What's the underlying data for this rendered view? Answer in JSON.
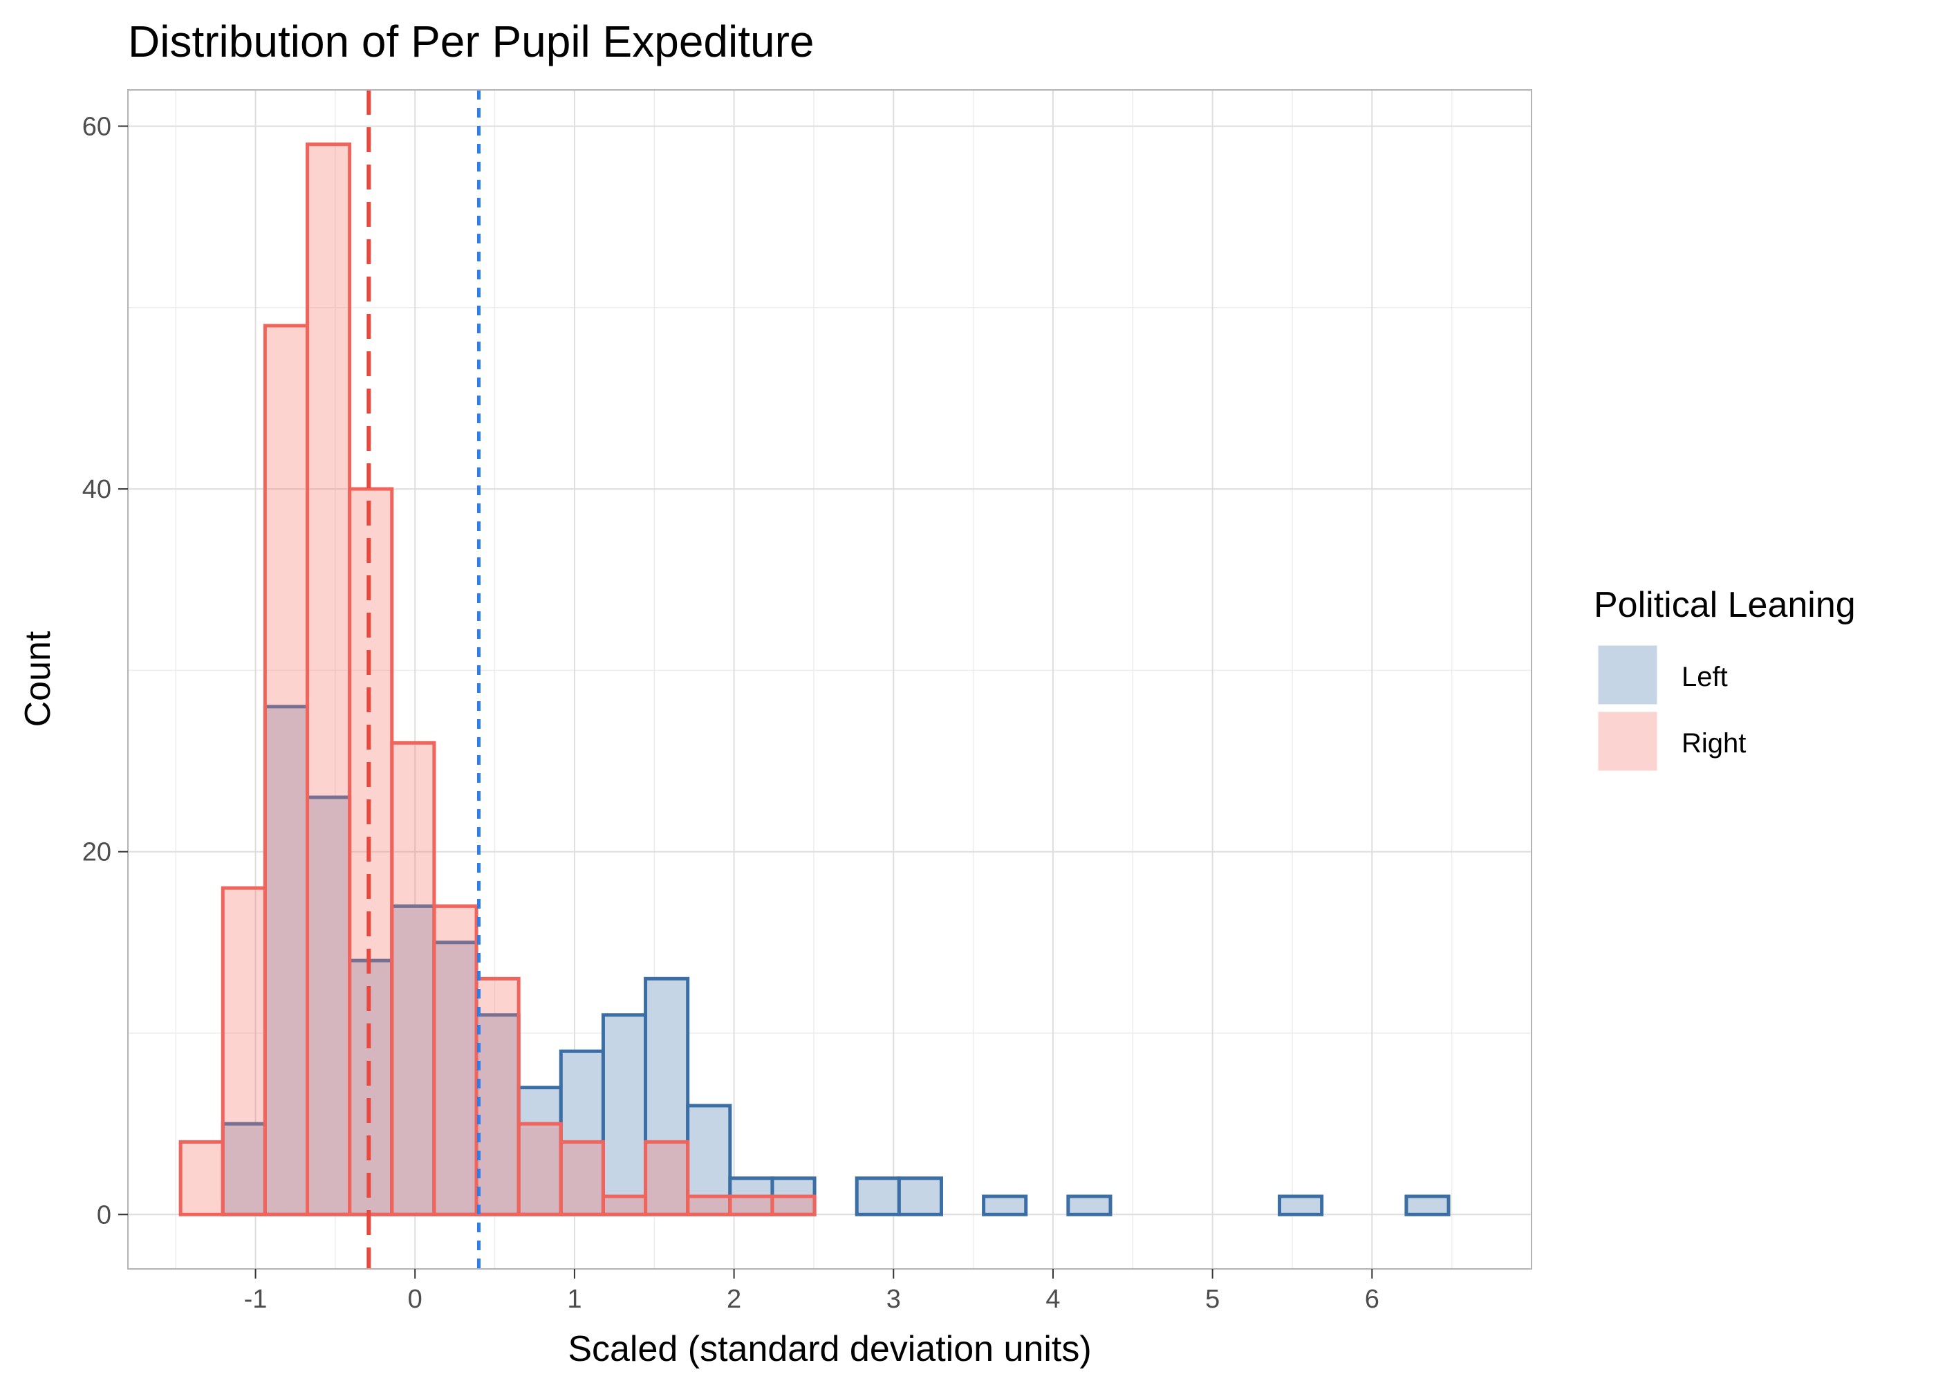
{
  "chart_data": {
    "type": "histogram",
    "title": "Distribution of Per Pupil Expediture",
    "xlabel": "Scaled (standard deviation units)",
    "ylabel": "Count",
    "xlim": [
      -1.8,
      7.0
    ],
    "ylim": [
      -3,
      62
    ],
    "x_ticks": [
      -1,
      0,
      1,
      2,
      3,
      4,
      5,
      6
    ],
    "x_tick_labels": [
      "-1",
      "0",
      "1",
      "2",
      "3",
      "4",
      "5",
      "6"
    ],
    "y_ticks": [
      0,
      20,
      40,
      60
    ],
    "y_tick_labels": [
      "0",
      "20",
      "40",
      "60"
    ],
    "grid": true,
    "bin_starts": [
      -1.47,
      -1.205,
      -0.94,
      -0.675,
      -0.41,
      -0.145,
      0.12,
      0.385,
      0.65,
      0.915,
      1.18,
      1.445,
      1.71,
      1.975,
      2.24,
      2.505,
      2.77,
      3.035,
      3.3,
      3.565,
      3.83,
      4.095,
      4.36,
      4.625,
      4.89,
      5.155,
      5.42,
      5.685,
      5.95,
      6.215
    ],
    "bin_width": 0.265,
    "series": [
      {
        "name": "Left",
        "fill": "#c5d5e6",
        "stroke": "#3a6ea5",
        "values": [
          0,
          5,
          28,
          23,
          14,
          17,
          15,
          11,
          7,
          9,
          11,
          13,
          6,
          2,
          2,
          0,
          2,
          2,
          0,
          1,
          0,
          1,
          0,
          0,
          0,
          0,
          1,
          0,
          0,
          1
        ]
      },
      {
        "name": "Right",
        "fill": "#f8766d",
        "stroke": "#f0645c",
        "values": [
          4,
          18,
          49,
          59,
          40,
          26,
          17,
          13,
          5,
          4,
          1,
          4,
          1,
          1,
          1,
          0,
          0,
          0,
          0,
          0,
          0,
          0,
          0,
          0,
          0,
          0,
          0,
          0,
          0,
          0
        ]
      }
    ],
    "mean_lines": [
      {
        "series": "Right",
        "x": -0.29,
        "color": "#e8493f"
      },
      {
        "series": "Left",
        "x": 0.4,
        "color": "#2f7ee8"
      }
    ],
    "legend": {
      "title": "Political Leaning",
      "position": "right",
      "items": [
        {
          "label": "Left",
          "color": "#c5d5e6"
        },
        {
          "label": "Right",
          "color": "#fbd3d0"
        }
      ]
    }
  }
}
